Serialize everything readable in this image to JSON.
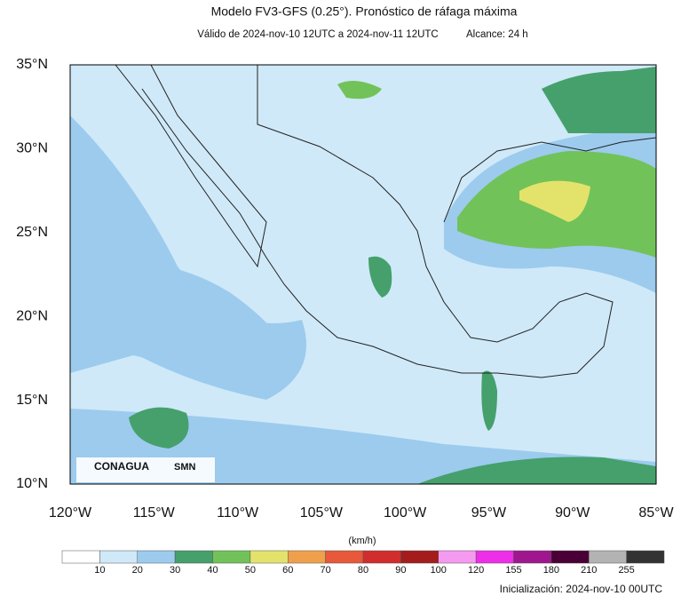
{
  "title": "Modelo FV3-GFS (0.25°). Pronóstico de ráfaga máxima",
  "subtitle": "Válido de 2024-nov-10 12UTC a 2024-nov-11 12UTC",
  "lead": "Alcance: 24 h",
  "map": {
    "lat_labels": [
      "35°N",
      "30°N",
      "25°N",
      "20°N",
      "15°N",
      "10°N"
    ],
    "lon_labels": [
      "120°W",
      "115°W",
      "110°W",
      "105°W",
      "100°W",
      "95°W",
      "90°W",
      "85°W"
    ]
  },
  "logos": [
    "CONAGUA",
    "SMN"
  ],
  "colorbar": {
    "unit": "(km/h)",
    "labels": [
      "10",
      "20",
      "30",
      "40",
      "50",
      "60",
      "70",
      "80",
      "90",
      "100",
      "120",
      "155",
      "180",
      "210",
      "255"
    ],
    "colors": [
      "#ffffff",
      "#cfe9f8",
      "#9ccbee",
      "#45a06c",
      "#72c25a",
      "#e3e36c",
      "#f0a04b",
      "#e8583a",
      "#d12d2d",
      "#a51c1c",
      "#f59af0",
      "#ee2ee8",
      "#a0168f",
      "#4a0036",
      "#b3b3b3",
      "#333333"
    ]
  },
  "footer": "Inicialización: 2024-nov-10 00UTC"
}
